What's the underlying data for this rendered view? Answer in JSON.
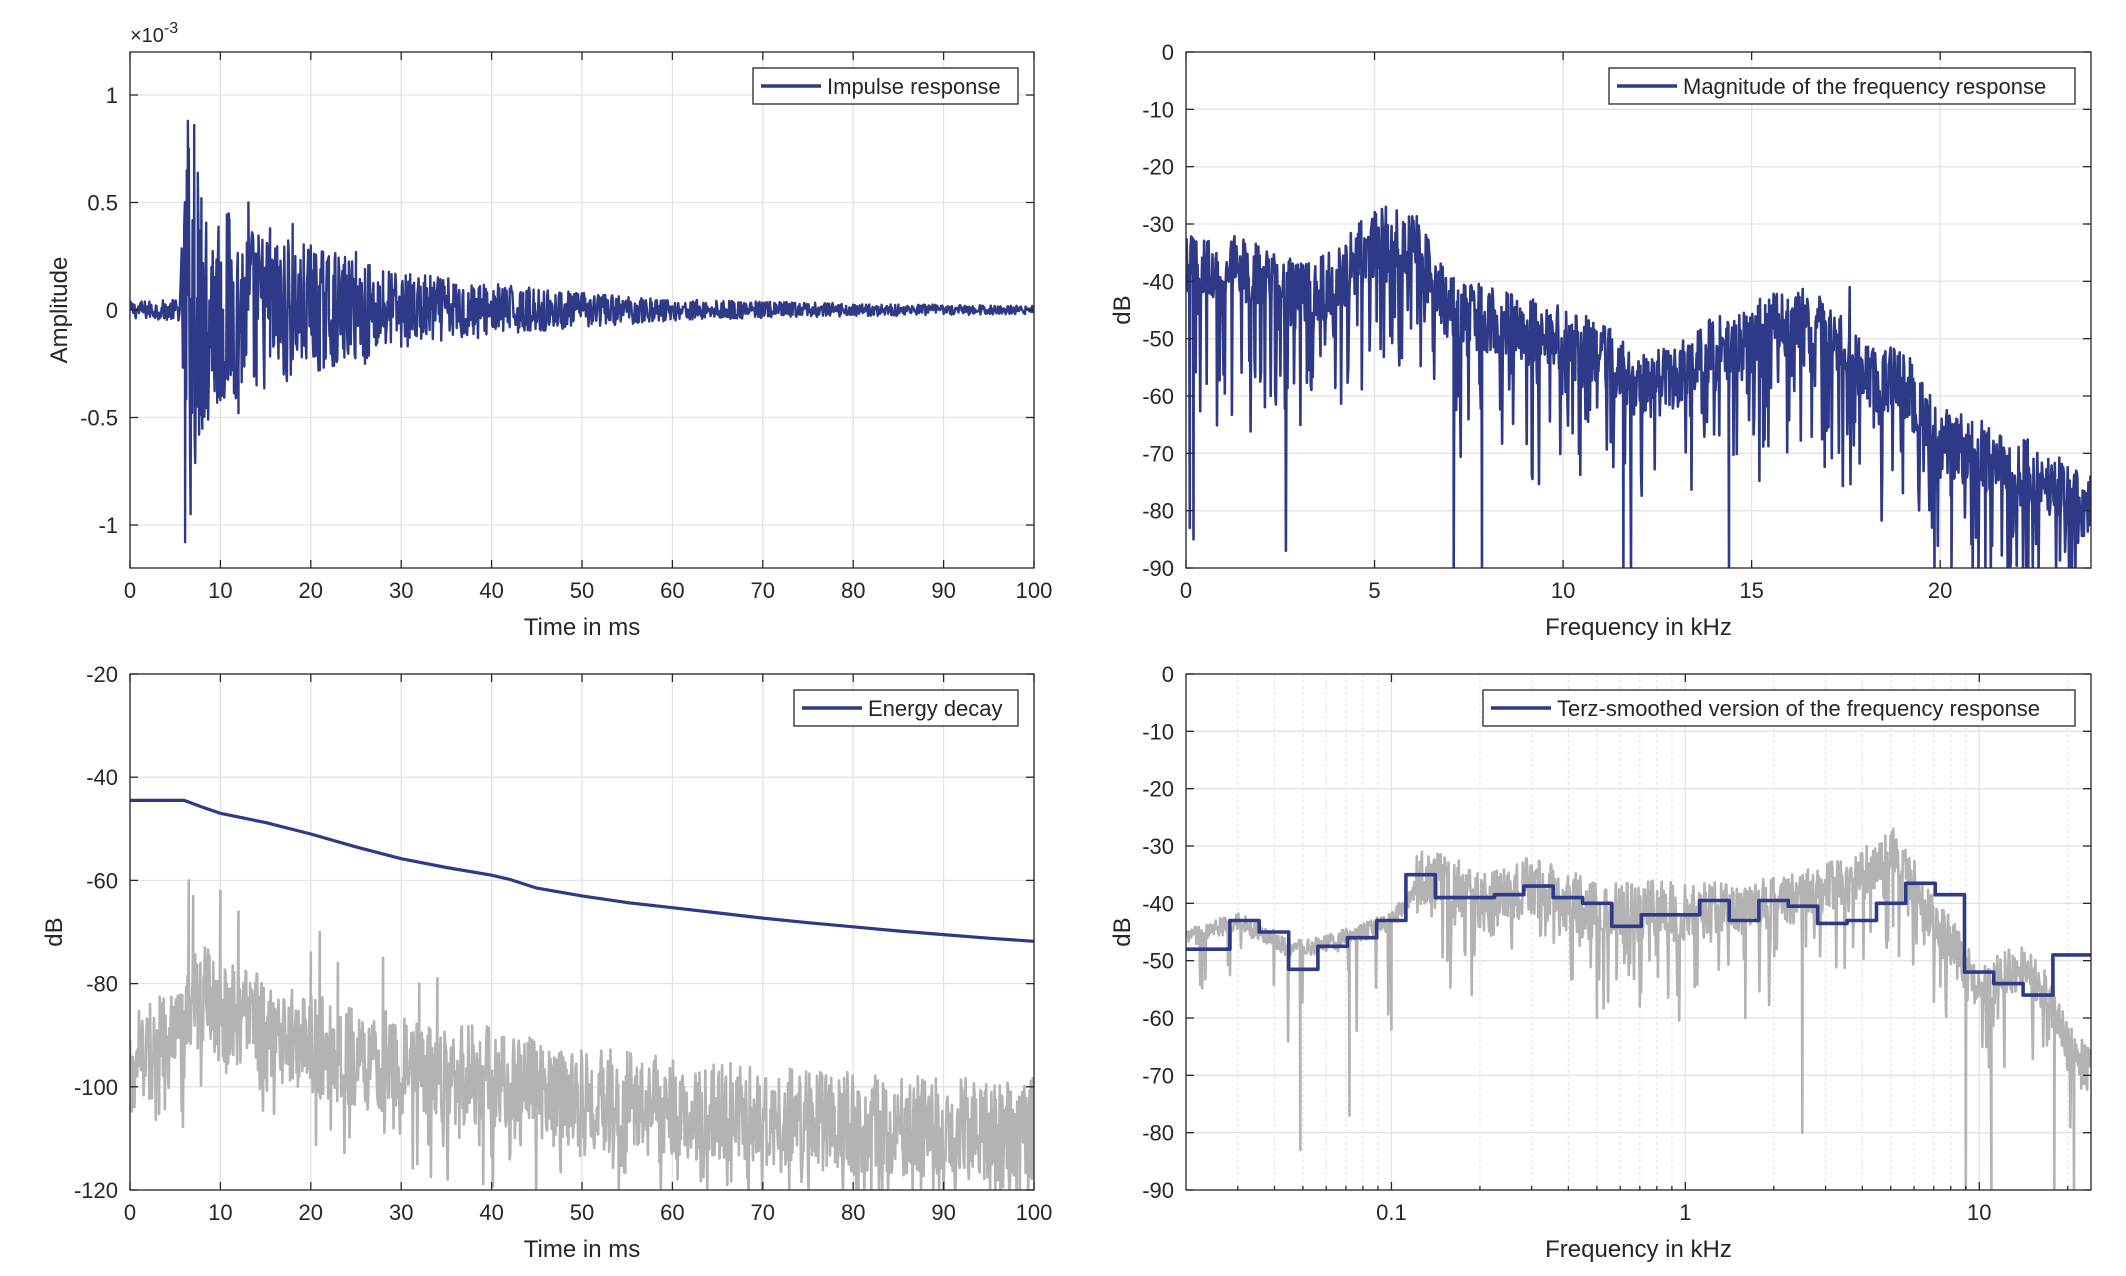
{
  "colors": {
    "main": "#2e3a87",
    "raw": "#b3b3b3",
    "axis": "#262626",
    "grid": "#e3e3e3"
  },
  "chart_data": [
    {
      "id": "impulse",
      "type": "line",
      "xlabel": "Time in ms",
      "ylabel": "Amplitude",
      "xlim": [
        0,
        100
      ],
      "ylim": [
        -1.2,
        1.2
      ],
      "xticks": [
        0,
        10,
        20,
        30,
        40,
        50,
        60,
        70,
        80,
        90,
        100
      ],
      "yticks": [
        -1,
        -0.5,
        0,
        0.5,
        1
      ],
      "ytick_labels": [
        "-1",
        "-0.5",
        "0",
        "0.5",
        "1"
      ],
      "y_exponent": "-3",
      "grid": true,
      "legend": {
        "position": "top-right",
        "entries": [
          "Impulse response"
        ]
      },
      "series": [
        {
          "name": "Impulse response",
          "color": "#2e3a87",
          "style": "noise",
          "envelope": [
            [
              0,
              0.04
            ],
            [
              5.5,
              0.05
            ],
            [
              6.2,
              0.9
            ],
            [
              8,
              0.62
            ],
            [
              12,
              0.42
            ],
            [
              20,
              0.3
            ],
            [
              30,
              0.18
            ],
            [
              45,
              0.1
            ],
            [
              60,
              0.05
            ],
            [
              80,
              0.03
            ],
            [
              100,
              0.02
            ]
          ],
          "x": [
            6.1,
            6.4,
            6.7,
            7.1,
            7.5,
            7.9,
            8.3,
            9.0,
            10.1,
            11.0,
            12.0,
            13.1,
            14.0,
            15.5,
            17.0,
            18.0,
            19.0,
            20.0,
            21.0,
            22.0,
            23.6,
            25.0,
            26.0,
            28.0,
            30.0,
            32.5,
            37.0,
            38.0,
            42.0,
            43.5
          ],
          "y": [
            -1.08,
            0.88,
            -0.95,
            0.86,
            -0.45,
            0.52,
            -0.38,
            0.2,
            -0.4,
            0.35,
            -0.48,
            0.5,
            -0.35,
            0.38,
            -0.3,
            0.4,
            -0.22,
            0.3,
            -0.28,
            0.25,
            -0.18,
            0.27,
            -0.25,
            0.18,
            -0.15,
            0.12,
            -0.1,
            0.1,
            -0.08,
            0.08
          ]
        }
      ]
    },
    {
      "id": "magnitude",
      "type": "line",
      "xlabel": "Frequency in kHz",
      "ylabel": "dB",
      "xlim": [
        0,
        24
      ],
      "ylim": [
        -90,
        0
      ],
      "xticks": [
        0,
        5,
        10,
        15,
        20
      ],
      "yticks": [
        0,
        -10,
        -20,
        -30,
        -40,
        -50,
        -60,
        -70,
        -80,
        -90
      ],
      "grid": true,
      "legend": {
        "position": "top-right",
        "entries": [
          "Magnitude of the frequency response"
        ]
      },
      "series": [
        {
          "name": "Magnitude of the frequency response",
          "color": "#2e3a87",
          "style": "noise",
          "envelope": [
            [
              0,
              -38
            ],
            [
              2,
              -38
            ],
            [
              3,
              -43
            ],
            [
              4,
              -40
            ],
            [
              5,
              -33
            ],
            [
              6,
              -33
            ],
            [
              7,
              -45
            ],
            [
              9,
              -48
            ],
            [
              11,
              -53
            ],
            [
              12,
              -58
            ],
            [
              13,
              -57
            ],
            [
              14,
              -52
            ],
            [
              16,
              -47
            ],
            [
              17,
              -47
            ],
            [
              18,
              -57
            ],
            [
              19,
              -57
            ],
            [
              20,
              -68
            ],
            [
              22,
              -72
            ],
            [
              24,
              -80
            ]
          ],
          "x": [
            0.1,
            0.2,
            2.65,
            5.3,
            5.8,
            7.1,
            7.85,
            11.6,
            11.8,
            14.4,
            17.6,
            19.85,
            20.3,
            21.2,
            23.5
          ],
          "y": [
            -83,
            -85,
            -87,
            -27,
            -30,
            -90,
            -90,
            -90,
            -90,
            -90,
            -41,
            -90,
            -90,
            -90,
            -90
          ]
        }
      ]
    },
    {
      "id": "energy",
      "type": "line",
      "xlabel": "Time in ms",
      "ylabel": "dB",
      "xlim": [
        0,
        100
      ],
      "ylim": [
        -120,
        -20
      ],
      "xticks": [
        0,
        10,
        20,
        30,
        40,
        50,
        60,
        70,
        80,
        90,
        100
      ],
      "yticks": [
        -20,
        -40,
        -60,
        -80,
        -100,
        -120
      ],
      "grid": true,
      "legend": {
        "position": "top-right",
        "entries": [
          "Energy decay"
        ]
      },
      "series": [
        {
          "name": "Energy decay",
          "color": "#2e3a87",
          "style": "line",
          "x": [
            0,
            6,
            8,
            10,
            15,
            20,
            25,
            30,
            35,
            40,
            42,
            45,
            50,
            55,
            60,
            65,
            70,
            75,
            80,
            85,
            90,
            95,
            100
          ],
          "y": [
            -44.5,
            -44.5,
            -45.8,
            -47,
            -48.8,
            -51,
            -53.5,
            -55.8,
            -57.5,
            -59,
            -59.8,
            -61.5,
            -63,
            -64.3,
            -65.3,
            -66.3,
            -67.3,
            -68.2,
            -69,
            -69.8,
            -70.5,
            -71.2,
            -71.8
          ]
        },
        {
          "style": "noise",
          "color": "#b3b3b3",
          "base": [
            [
              0,
              -95
            ],
            [
              6,
              -90
            ],
            [
              7,
              -80
            ],
            [
              10,
              -85
            ],
            [
              20,
              -92
            ],
            [
              30,
              -96
            ],
            [
              40,
              -98
            ],
            [
              50,
              -102
            ],
            [
              60,
              -104
            ],
            [
              70,
              -106
            ],
            [
              80,
              -107
            ],
            [
              90,
              -108
            ],
            [
              100,
              -108
            ]
          ],
          "x": [
            6.5,
            7.0,
            10.0,
            12.0,
            20.0,
            21.0,
            23.0,
            28.0,
            32.0,
            34.0
          ],
          "y": [
            -60,
            -63,
            -62,
            -66,
            -74,
            -70,
            -76,
            -75,
            -80,
            -79
          ]
        }
      ]
    },
    {
      "id": "terz",
      "type": "line",
      "xlabel": "Frequency in kHz",
      "ylabel": "dB",
      "xscale": "log",
      "xlim": [
        0.02,
        24
      ],
      "ylim": [
        -90,
        0
      ],
      "xticks": [
        0.1,
        1,
        10
      ],
      "xtick_labels": [
        "0.1",
        "1",
        "10"
      ],
      "yticks": [
        0,
        -10,
        -20,
        -30,
        -40,
        -50,
        -60,
        -70,
        -80,
        -90
      ],
      "grid": true,
      "legend": {
        "position": "top-right",
        "entries": [
          "Terz-smoothed version of the frequency response"
        ]
      },
      "series": [
        {
          "style": "noise",
          "color": "#b3b3b3",
          "envelope": [
            [
              0.02,
              -46
            ],
            [
              0.03,
              -43
            ],
            [
              0.045,
              -48
            ],
            [
              0.06,
              -47
            ],
            [
              0.08,
              -45
            ],
            [
              0.1,
              -43
            ],
            [
              0.13,
              -35
            ],
            [
              0.2,
              -40
            ],
            [
              0.3,
              -37
            ],
            [
              0.5,
              -42
            ],
            [
              1,
              -41
            ],
            [
              2,
              -40
            ],
            [
              4,
              -35
            ],
            [
              5,
              -31
            ],
            [
              7,
              -43
            ],
            [
              10,
              -55
            ],
            [
              15,
              -50
            ],
            [
              20,
              -65
            ],
            [
              24,
              -70
            ]
          ],
          "x": [
            0.049,
            0.072,
            0.1,
            0.155,
            0.5,
            0.7,
            1.6,
            2.5,
            5.1,
            9.0,
            11.0,
            18.0,
            21.0
          ],
          "y": [
            -83,
            -77,
            -62,
            -50,
            -60,
            -58,
            -60,
            -80,
            -27,
            -90,
            -90,
            -90,
            -90
          ]
        },
        {
          "name": "Terz-smoothed version of the frequency response",
          "color": "#2e3a87",
          "style": "step",
          "x": [
            0.02,
            0.0282,
            0.0355,
            0.0447,
            0.0562,
            0.0708,
            0.0891,
            0.112,
            0.141,
            0.178,
            0.224,
            0.282,
            0.355,
            0.447,
            0.562,
            0.708,
            0.891,
            1.12,
            1.41,
            1.78,
            2.24,
            2.82,
            3.55,
            4.47,
            5.62,
            7.08,
            8.91,
            11.2,
            14.1,
            17.8,
            24
          ],
          "y": [
            -48,
            -43,
            -45,
            -51.5,
            -47.5,
            -46,
            -43,
            -35,
            -39,
            -39,
            -38.5,
            -37,
            -39,
            -40,
            -44,
            -42,
            -42,
            -39.5,
            -43,
            -39.5,
            -40.5,
            -43.5,
            -43,
            -40,
            -36.5,
            -38.5,
            -52,
            -54,
            -56,
            -49,
            -61.5
          ]
        }
      ]
    }
  ]
}
